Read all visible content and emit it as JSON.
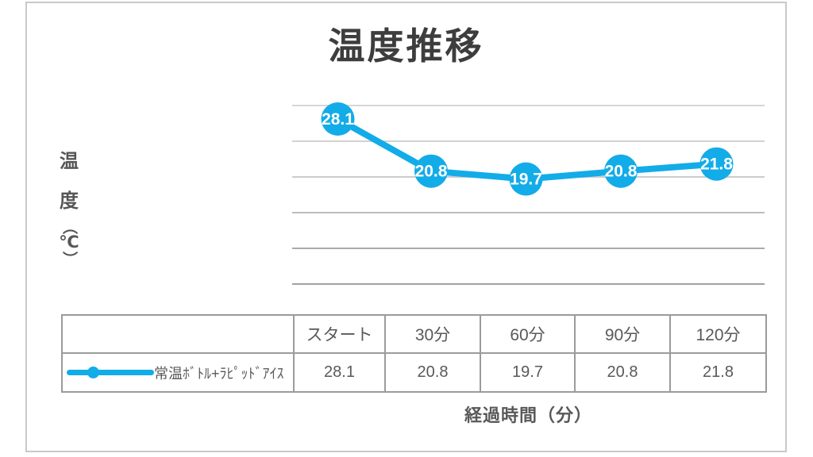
{
  "chart_title": "温度推移",
  "y_axis_title": {
    "text": "温度（℃）",
    "chars": [
      "温",
      "度",
      "（",
      "℃",
      "）"
    ]
  },
  "x_axis_title": "経過時間（分）",
  "legend": {
    "series_label": "常温ﾎﾞﾄﾙ+ﾗﾋﾟｯﾄﾞｱｲｽ"
  },
  "table": {
    "column_headers": [
      "スタート",
      "30分",
      "60分",
      "90分",
      "120分"
    ],
    "row_values": [
      "28.1",
      "20.8",
      "19.7",
      "20.8",
      "21.8"
    ]
  },
  "chart_data": {
    "type": "line",
    "title": "温度推移",
    "categories": [
      "スタート",
      "30分",
      "60分",
      "90分",
      "120分"
    ],
    "series": [
      {
        "name": "常温ﾎﾞﾄﾙ+ﾗﾋﾟｯﾄﾞｱｲｽ",
        "values": [
          28.1,
          20.8,
          19.7,
          20.8,
          21.8
        ]
      }
    ],
    "xlabel": "経過時間（分）",
    "ylabel": "温度（℃）",
    "data_labels": true,
    "y_ticks_labeled": false,
    "gridline_count": 6,
    "grid": true,
    "legend_position": "left-of-table-row",
    "series_color": "#12ACE8"
  },
  "colors": {
    "series_blue": "#12ACE8",
    "title_text": "#3D3D3D",
    "body_text": "#595959",
    "data_label_text": "#FFFFFF",
    "card_border": "#C9C9C9",
    "table_border": "#9B9B9B"
  }
}
